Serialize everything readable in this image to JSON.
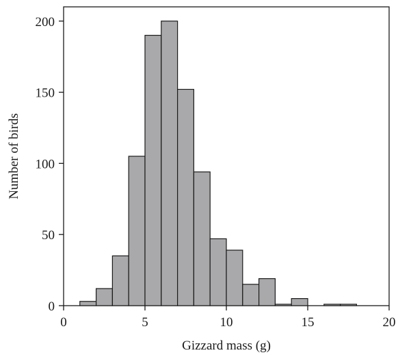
{
  "chart_data": {
    "type": "bar",
    "subtype": "histogram",
    "bin_width": 1,
    "bins": [
      {
        "start": 1,
        "end": 2,
        "count": 3
      },
      {
        "start": 2,
        "end": 3,
        "count": 12
      },
      {
        "start": 3,
        "end": 4,
        "count": 35
      },
      {
        "start": 4,
        "end": 5,
        "count": 105
      },
      {
        "start": 5,
        "end": 6,
        "count": 190
      },
      {
        "start": 6,
        "end": 7,
        "count": 200
      },
      {
        "start": 7,
        "end": 8,
        "count": 152
      },
      {
        "start": 8,
        "end": 9,
        "count": 94
      },
      {
        "start": 9,
        "end": 10,
        "count": 47
      },
      {
        "start": 10,
        "end": 11,
        "count": 39
      },
      {
        "start": 11,
        "end": 12,
        "count": 15
      },
      {
        "start": 12,
        "end": 13,
        "count": 19
      },
      {
        "start": 13,
        "end": 14,
        "count": 1
      },
      {
        "start": 14,
        "end": 15,
        "count": 5
      },
      {
        "start": 15,
        "end": 16,
        "count": 0
      },
      {
        "start": 16,
        "end": 17,
        "count": 1
      },
      {
        "start": 17,
        "end": 18,
        "count": 1
      }
    ],
    "xlabel": "Gizzard mass (g)",
    "ylabel": "Number of birds",
    "xlim": [
      0,
      20
    ],
    "ylim": [
      0,
      210
    ],
    "xticks": [
      "0",
      "5",
      "10",
      "15",
      "20"
    ],
    "yticks": [
      "0",
      "50",
      "100",
      "150",
      "200"
    ],
    "grid": false,
    "bar_color": "#a9a9ab",
    "edge_color": "#1a1a1a"
  }
}
